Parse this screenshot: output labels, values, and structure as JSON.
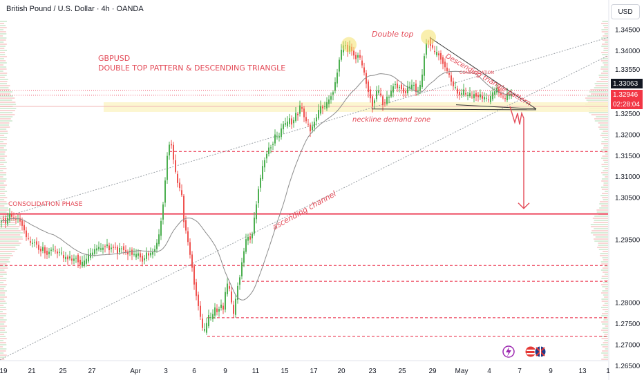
{
  "header": {
    "symbol_title": "British Pound / U.S. Dollar · 4h · OANDA",
    "currency_button": "USD"
  },
  "annotations": {
    "title_line1": "GBPUSD",
    "title_line2": "DOUBLE TOP PATTERN & DESCENDING TRIANGLE",
    "double_top": "Double top",
    "descending_triangle": "Descending triangle pattern",
    "consolidation_small": "CONSOLIDATION",
    "neckline": "neckline demand zone",
    "consolidation_phase": "CONSOLIDATION PHASE",
    "ascending_channel": "ascending channel"
  },
  "colors": {
    "up": "#4caf50",
    "down": "#ef5350",
    "annotation": "#e34a57",
    "level_line": "#e91e3a",
    "current_price_tag": "#131722",
    "countdown_tag": "#f23645",
    "channel": "#9aa0a6",
    "moving_average": "#8c8c8c",
    "zone_fill": "#fbf4c8"
  },
  "icons": [
    "lightning-icon",
    "flag-us-icon",
    "flag-uk-icon"
  ],
  "chart_data": {
    "type": "candlestick",
    "symbol": "GBPUSD",
    "timeframe": "4h",
    "x_ticks": [
      "19",
      "21",
      "25",
      "27",
      "Apr",
      "3",
      "6",
      "9",
      "11",
      "15",
      "17",
      "20",
      "23",
      "25",
      "29",
      "May",
      "4",
      "7",
      "9",
      "13",
      "1"
    ],
    "y_ticks": [
      1.345,
      1.34,
      1.3355,
      1.33,
      1.325,
      1.32,
      1.315,
      1.31,
      1.305,
      1.295,
      1.28,
      1.275,
      1.27,
      1.265
    ],
    "y_tick_labels": [
      "1.34500",
      "1.34000",
      "1.33550",
      "1.33000",
      "1.32500",
      "1.32000",
      "1.31500",
      "1.31000",
      "1.30500",
      "1.29500",
      "1.28000",
      "1.27500",
      "1.27000",
      "1.26500"
    ],
    "ylim": [
      1.264,
      1.3495
    ],
    "key_levels": [
      {
        "label": "1.31609",
        "value": 1.31609
      },
      {
        "label": "1.30121",
        "value": 1.30121
      },
      {
        "label": "1.28895",
        "value": 1.28895
      },
      {
        "label": "1.28519",
        "value": 1.28519
      },
      {
        "label": "1.27652",
        "value": 1.27652
      },
      {
        "label": "1.27210",
        "value": 1.2721
      }
    ],
    "current_price": {
      "label": "1.33063",
      "value": 1.33063
    },
    "last_price": {
      "label": "1.32946",
      "value": 1.32946,
      "countdown": "02:28:04"
    },
    "price_path": [
      [
        0,
        1.2988
      ],
      [
        5,
        1.3005
      ],
      [
        10,
        1.299
      ],
      [
        16,
        1.3012
      ],
      [
        22,
        1.2998
      ],
      [
        28,
        1.3002
      ],
      [
        34,
        1.2985
      ],
      [
        40,
        1.2955
      ],
      [
        46,
        1.294
      ],
      [
        52,
        1.2948
      ],
      [
        58,
        1.2925
      ],
      [
        64,
        1.293
      ],
      [
        70,
        1.2915
      ],
      [
        76,
        1.2932
      ],
      [
        82,
        1.292
      ],
      [
        88,
        1.2922
      ],
      [
        94,
        1.2905
      ],
      [
        100,
        1.291
      ],
      [
        106,
        1.29
      ],
      [
        112,
        1.2912
      ],
      [
        118,
        1.289
      ],
      [
        124,
        1.2896
      ],
      [
        130,
        1.2912
      ],
      [
        136,
        1.292
      ],
      [
        142,
        1.2932
      ],
      [
        148,
        1.2926
      ],
      [
        154,
        1.294
      ],
      [
        160,
        1.2928
      ],
      [
        166,
        1.2936
      ],
      [
        172,
        1.2922
      ],
      [
        178,
        1.2935
      ],
      [
        184,
        1.2918
      ],
      [
        190,
        1.2925
      ],
      [
        196,
        1.291
      ],
      [
        202,
        1.2918
      ],
      [
        208,
        1.29
      ],
      [
        214,
        1.2918
      ],
      [
        220,
        1.2915
      ],
      [
        226,
        1.293
      ],
      [
        232,
        1.2962
      ],
      [
        238,
        1.3045
      ],
      [
        244,
        1.316
      ],
      [
        248,
        1.319
      ],
      [
        252,
        1.315
      ],
      [
        256,
        1.31
      ],
      [
        260,
        1.308
      ],
      [
        264,
        1.306
      ],
      [
        268,
        1.299
      ],
      [
        272,
        1.296
      ],
      [
        276,
        1.292
      ],
      [
        280,
        1.288
      ],
      [
        284,
        1.283
      ],
      [
        288,
        1.28
      ],
      [
        292,
        1.276
      ],
      [
        296,
        1.2725
      ],
      [
        300,
        1.2745
      ],
      [
        304,
        1.277
      ],
      [
        308,
        1.276
      ],
      [
        312,
        1.279
      ],
      [
        316,
        1.2775
      ],
      [
        320,
        1.28
      ],
      [
        324,
        1.278
      ],
      [
        328,
        1.283
      ],
      [
        332,
        1.285
      ],
      [
        336,
        1.28
      ],
      [
        340,
        1.277
      ],
      [
        344,
        1.283
      ],
      [
        348,
        1.286
      ],
      [
        352,
        1.29
      ],
      [
        356,
        1.294
      ],
      [
        360,
        1.296
      ],
      [
        364,
        1.295
      ],
      [
        368,
        1.298
      ],
      [
        372,
        1.303
      ],
      [
        376,
        1.308
      ],
      [
        380,
        1.311
      ],
      [
        384,
        1.314
      ],
      [
        388,
        1.316
      ],
      [
        392,
        1.317
      ],
      [
        396,
        1.318
      ],
      [
        400,
        1.32
      ],
      [
        404,
        1.319
      ],
      [
        408,
        1.321
      ],
      [
        412,
        1.323
      ],
      [
        416,
        1.322
      ],
      [
        420,
        1.324
      ],
      [
        424,
        1.3225
      ],
      [
        428,
        1.3245
      ],
      [
        432,
        1.325
      ],
      [
        436,
        1.327
      ],
      [
        440,
        1.3255
      ],
      [
        444,
        1.323
      ],
      [
        448,
        1.322
      ],
      [
        452,
        1.321
      ],
      [
        456,
        1.323
      ],
      [
        460,
        1.3245
      ],
      [
        464,
        1.326
      ],
      [
        468,
        1.327
      ],
      [
        472,
        1.3265
      ],
      [
        476,
        1.328
      ],
      [
        480,
        1.329
      ],
      [
        484,
        1.331
      ],
      [
        488,
        1.333
      ],
      [
        492,
        1.338
      ],
      [
        496,
        1.34
      ],
      [
        500,
        1.342
      ],
      [
        504,
        1.34
      ],
      [
        508,
        1.341
      ],
      [
        512,
        1.3395
      ],
      [
        516,
        1.338
      ],
      [
        520,
        1.3395
      ],
      [
        524,
        1.337
      ],
      [
        528,
        1.335
      ],
      [
        532,
        1.332
      ],
      [
        536,
        1.33
      ],
      [
        540,
        1.327
      ],
      [
        544,
        1.329
      ],
      [
        548,
        1.331
      ],
      [
        552,
        1.329
      ],
      [
        556,
        1.3275
      ],
      [
        560,
        1.328
      ],
      [
        564,
        1.3295
      ],
      [
        568,
        1.33
      ],
      [
        572,
        1.333
      ],
      [
        576,
        1.331
      ],
      [
        580,
        1.332
      ],
      [
        584,
        1.3305
      ],
      [
        588,
        1.33
      ],
      [
        592,
        1.3315
      ],
      [
        596,
        1.331
      ],
      [
        600,
        1.3325
      ],
      [
        604,
        1.33
      ],
      [
        608,
        1.331
      ],
      [
        612,
        1.333
      ],
      [
        616,
        1.34
      ],
      [
        620,
        1.343
      ],
      [
        624,
        1.342
      ],
      [
        628,
        1.34
      ],
      [
        632,
        1.339
      ],
      [
        636,
        1.3395
      ],
      [
        640,
        1.338
      ],
      [
        644,
        1.337
      ],
      [
        648,
        1.335
      ],
      [
        652,
        1.334
      ],
      [
        656,
        1.332
      ],
      [
        660,
        1.331
      ],
      [
        664,
        1.33
      ],
      [
        668,
        1.3295
      ],
      [
        672,
        1.3305
      ],
      [
        676,
        1.329
      ],
      [
        680,
        1.33
      ],
      [
        684,
        1.3285
      ],
      [
        688,
        1.33
      ],
      [
        692,
        1.329
      ],
      [
        696,
        1.3295
      ],
      [
        700,
        1.3285
      ],
      [
        704,
        1.329
      ],
      [
        708,
        1.328
      ],
      [
        712,
        1.329
      ],
      [
        716,
        1.33
      ],
      [
        720,
        1.331
      ],
      [
        724,
        1.33
      ],
      [
        728,
        1.329
      ],
      [
        732,
        1.3285
      ],
      [
        736,
        1.3295
      ],
      [
        740,
        1.3294
      ]
    ]
  }
}
